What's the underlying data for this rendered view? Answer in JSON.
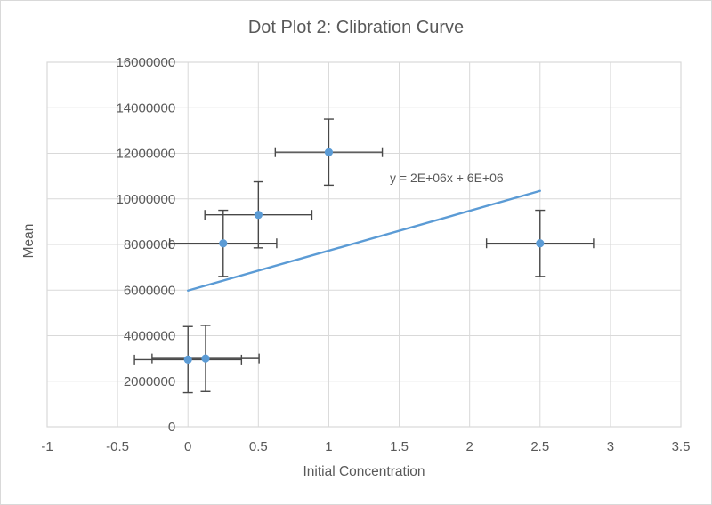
{
  "chart_data": {
    "type": "scatter",
    "title": "Dot Plot 2: Clibration Curve",
    "xlabel": "Initial Concentration",
    "ylabel": "Mean",
    "xlim": [
      -1,
      3.5
    ],
    "ylim": [
      0,
      16000000
    ],
    "grid": true,
    "legend_position": "none",
    "x_ticks": [
      -1,
      -0.5,
      0,
      0.5,
      1,
      1.5,
      2,
      2.5,
      3,
      3.5
    ],
    "x_tick_labels": [
      "-1",
      "-0.5",
      "0",
      "0.5",
      "1",
      "1.5",
      "2",
      "2.5",
      "3",
      "3.5"
    ],
    "y_ticks": [
      0,
      2000000,
      4000000,
      6000000,
      8000000,
      10000000,
      12000000,
      14000000,
      16000000
    ],
    "y_tick_labels": [
      "0",
      "2000000",
      "4000000",
      "6000000",
      "8000000",
      "10000000",
      "12000000",
      "14000000",
      "16000000"
    ],
    "points": [
      {
        "x": 0,
        "y": 2950000,
        "xerr": 0.38,
        "yerr": 1450000
      },
      {
        "x": 0.125,
        "y": 3000000,
        "xerr": 0.38,
        "yerr": 1450000
      },
      {
        "x": 0.25,
        "y": 8050000,
        "xerr": 0.38,
        "yerr": 1450000
      },
      {
        "x": 0.5,
        "y": 9300000,
        "xerr": 0.38,
        "yerr": 1450000
      },
      {
        "x": 1,
        "y": 12050000,
        "xerr": 0.38,
        "yerr": 1450000
      },
      {
        "x": 2.5,
        "y": 8050000,
        "xerr": 0.38,
        "yerr": 1450000
      }
    ],
    "trendline": {
      "x1": 0,
      "y1": 5980000,
      "x2": 2.5,
      "y2": 10350000
    },
    "annotation": {
      "text": "y = 2E+06x + 6E+06",
      "x": 1.43,
      "y": 10950000
    },
    "colors": {
      "series": "#5B9BD5",
      "error_bars": "#484848",
      "gridlines": "#D9D9D9",
      "plot_border": "#D9D9D9",
      "text": "#595959",
      "background": "#FFFFFF"
    }
  }
}
